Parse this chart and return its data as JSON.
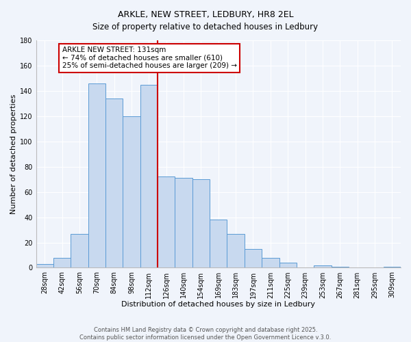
{
  "title": "ARKLE, NEW STREET, LEDBURY, HR8 2EL",
  "subtitle": "Size of property relative to detached houses in Ledbury",
  "xlabel": "Distribution of detached houses by size in Ledbury",
  "ylabel": "Number of detached properties",
  "bar_labels": [
    "28sqm",
    "42sqm",
    "56sqm",
    "70sqm",
    "84sqm",
    "98sqm",
    "112sqm",
    "126sqm",
    "140sqm",
    "154sqm",
    "169sqm",
    "183sqm",
    "197sqm",
    "211sqm",
    "225sqm",
    "239sqm",
    "253sqm",
    "267sqm",
    "281sqm",
    "295sqm",
    "309sqm"
  ],
  "bar_values": [
    3,
    8,
    27,
    146,
    134,
    120,
    145,
    72,
    71,
    70,
    38,
    27,
    15,
    8,
    4,
    0,
    2,
    1,
    0,
    0,
    1
  ],
  "bar_color": "#c8d9ef",
  "bar_edge_color": "#5b9bd5",
  "vline_color": "#cc0000",
  "vline_index": 7,
  "annotation_title": "ARKLE NEW STREET: 131sqm",
  "annotation_line1": "← 74% of detached houses are smaller (610)",
  "annotation_line2": "25% of semi-detached houses are larger (209) →",
  "annotation_box_color": "#ffffff",
  "annotation_box_edge_color": "#cc0000",
  "ylim": [
    0,
    180
  ],
  "yticks": [
    0,
    20,
    40,
    60,
    80,
    100,
    120,
    140,
    160,
    180
  ],
  "footer1": "Contains HM Land Registry data © Crown copyright and database right 2025.",
  "footer2": "Contains public sector information licensed under the Open Government Licence v.3.0.",
  "bg_color": "#f0f4fb",
  "plot_bg_color": "#f0f4fb",
  "grid_color": "#ffffff",
  "title_fontsize": 9,
  "subtitle_fontsize": 8.5,
  "axis_label_fontsize": 8,
  "tick_fontsize": 7,
  "annotation_fontsize": 7.5,
  "footer_fontsize": 6
}
